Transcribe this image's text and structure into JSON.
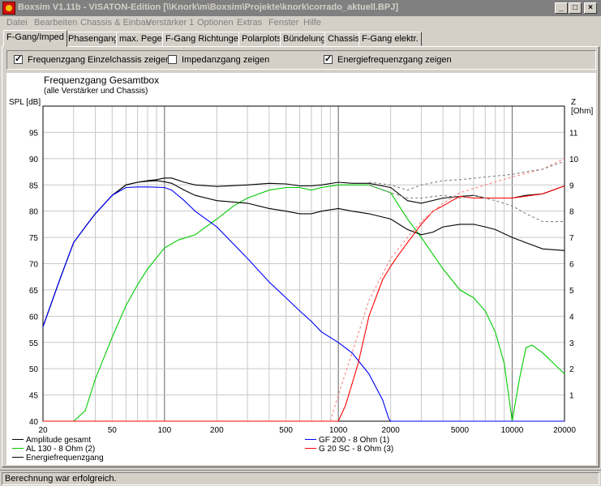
{
  "window": {
    "title": "Boxsim V1.11b - VISATON-Edition [\\\\Knork\\m\\Boxsim\\Projekte\\knork\\corrado_aktuell.BPJ]",
    "minimize": "_",
    "maximize": "□",
    "close": "×"
  },
  "menu": [
    "Datei",
    "Bearbeiten",
    "Chassis & Einbau",
    "Verstärker 1",
    "Optionen",
    "Extras",
    "Fenster",
    "Hilfe"
  ],
  "tabs": [
    "F-Gang/Imped",
    "Phasengang",
    "max. Pegel",
    "F-Gang Richtungen",
    "Polarplots",
    "Bündelung",
    "Chassis",
    "F-Gang elektr."
  ],
  "checkboxes": [
    {
      "label": "Frequenzgang Einzelchassis zeigen",
      "checked": true
    },
    {
      "label": "Impedanzgang zeigen",
      "checked": false
    },
    {
      "label": "Energiefrequenzgang zeigen",
      "checked": true
    }
  ],
  "status": "Berechnung war erfolgreich.",
  "chart_data": {
    "type": "line",
    "title": "Frequenzgang Gesamtbox",
    "subtitle": "(alle Verstärker und Chassis)",
    "ylabel": "SPL [dB]",
    "y2label": "Z [Ohm]",
    "xscale": "log",
    "xlim": [
      20,
      20000
    ],
    "ylim": [
      40,
      100
    ],
    "y2lim": [
      0,
      12
    ],
    "xticks": [
      20,
      50,
      100,
      200,
      500,
      1000,
      2000,
      5000,
      10000,
      20000
    ],
    "xtick_labels": [
      "20",
      "50",
      "100",
      "200",
      "500",
      "1000",
      "2000",
      "5000",
      "10000",
      "20000"
    ],
    "yticks": [
      40,
      45,
      50,
      55,
      60,
      65,
      70,
      75,
      80,
      85,
      90,
      95
    ],
    "y2ticks": [
      1,
      2,
      3,
      4,
      5,
      6,
      7,
      8,
      9,
      10,
      11
    ],
    "grid": true,
    "series": [
      {
        "name": "Amplitude gesamt",
        "color": "#000000",
        "style": "solid",
        "x": [
          20,
          25,
          30,
          35,
          40,
          50,
          60,
          70,
          80,
          90,
          100,
          110,
          130,
          150,
          200,
          300,
          400,
          500,
          600,
          700,
          800,
          1000,
          1200,
          1500,
          2000,
          2500,
          3000,
          4000,
          5000,
          6000,
          7000,
          8000,
          10000,
          12000,
          15000,
          20000
        ],
        "y": [
          58,
          67,
          74,
          77,
          79.5,
          83,
          85,
          85.5,
          85.8,
          86,
          86.3,
          86.3,
          85.5,
          85,
          84.7,
          85,
          85.3,
          85.2,
          84.8,
          84.8,
          85,
          85.5,
          85.3,
          85.3,
          84.5,
          82,
          81.5,
          82.5,
          82.8,
          83,
          82.5,
          82.5,
          82.5,
          83,
          83.3,
          84.8
        ]
      },
      {
        "name": "AL 130 - 8 Ohm (2)",
        "color": "#00cc00",
        "style": "solid",
        "x": [
          20,
          30,
          35,
          40,
          50,
          60,
          70,
          80,
          100,
          120,
          150,
          200,
          250,
          300,
          400,
          500,
          600,
          700,
          800,
          1000,
          1200,
          1500,
          2000,
          2500,
          3000,
          4000,
          5000,
          6000,
          7000,
          8000,
          9000,
          10000,
          11000,
          12000,
          13000,
          15000,
          20000
        ],
        "y": [
          40,
          40,
          42,
          48,
          56,
          62,
          66,
          69,
          73,
          74.5,
          75.5,
          78.5,
          81,
          82.5,
          84,
          84.5,
          84.5,
          84,
          84.5,
          85,
          85,
          85,
          83.5,
          78.5,
          75,
          69,
          65,
          63.5,
          61,
          57,
          51,
          40,
          48,
          54,
          54.5,
          53,
          49
        ]
      },
      {
        "name": "Energiefrequenzgang",
        "color": "#000000",
        "style": "solid",
        "x": [
          20,
          25,
          30,
          35,
          40,
          50,
          60,
          70,
          80,
          90,
          100,
          110,
          130,
          150,
          200,
          300,
          400,
          500,
          600,
          700,
          800,
          1000,
          1200,
          1500,
          2000,
          2500,
          3000,
          3500,
          4000,
          5000,
          6000,
          7000,
          8000,
          10000,
          12000,
          15000,
          20000
        ],
        "y": [
          58,
          67,
          74,
          77,
          79.5,
          83,
          85,
          85.5,
          85.7,
          85.8,
          85.6,
          85.3,
          84,
          83,
          82,
          81.5,
          80.5,
          80,
          79.5,
          79.5,
          80,
          80.5,
          80,
          79.5,
          78.5,
          76.5,
          75.5,
          76,
          77,
          77.5,
          77.5,
          77,
          76.5,
          75,
          74,
          72.8,
          72.5
        ]
      },
      {
        "name": "GF 200 - 8 Ohm (1)",
        "color": "#0000ff",
        "style": "solid",
        "x": [
          20,
          25,
          30,
          35,
          40,
          50,
          60,
          70,
          80,
          100,
          110,
          130,
          150,
          200,
          300,
          400,
          500,
          600,
          700,
          800,
          1000,
          1200,
          1500,
          1800,
          1950,
          2000,
          20000
        ],
        "y": [
          58,
          67,
          74,
          77,
          79.5,
          83,
          84.5,
          84.6,
          84.6,
          84.5,
          84,
          82,
          80,
          77,
          71,
          66.5,
          63.5,
          61,
          59,
          57,
          55,
          53,
          49,
          44,
          40.5,
          40,
          40
        ]
      },
      {
        "name": "G 20 SC - 8 Ohm (3)",
        "color": "#ff0000",
        "style": "solid",
        "x": [
          20,
          1000,
          1100,
          1300,
          1500,
          1800,
          2000,
          2200,
          2500,
          3000,
          3500,
          4000,
          4500,
          5000,
          6000,
          8000,
          10000,
          15000,
          20000
        ],
        "y": [
          40,
          40,
          43,
          51,
          60,
          67,
          69.5,
          71.5,
          74,
          77.5,
          80,
          81,
          82,
          82.8,
          82.5,
          82.5,
          82.5,
          83.3,
          84.8
        ]
      },
      {
        "name": "",
        "color": "#ff8080",
        "style": "dashed",
        "x": [
          900,
          1000,
          1200,
          1500,
          2000,
          2500,
          3000,
          4000,
          5000,
          7000,
          10000,
          15000,
          20000
        ],
        "y": [
          40,
          45,
          53,
          63,
          71,
          75,
          78,
          81.5,
          83.5,
          85,
          86.5,
          88,
          90
        ]
      },
      {
        "name": "",
        "color": "#808080",
        "style": "dashed",
        "x": [
          1500,
          2000,
          2500,
          3000,
          4000,
          5000,
          7000,
          10000,
          12000,
          15000,
          20000
        ],
        "y": [
          85.5,
          85,
          84,
          85,
          85.8,
          86,
          86.5,
          87,
          87.5,
          88,
          89.5
        ]
      },
      {
        "name": "",
        "color": "#808080",
        "style": "dashed",
        "x": [
          1500,
          2000,
          2500,
          3000,
          4000,
          5000,
          6000,
          8000,
          10000,
          12000,
          15000,
          20000
        ],
        "y": [
          85,
          83.5,
          82.5,
          82.5,
          83,
          82.5,
          83,
          82,
          81,
          79.5,
          78,
          78
        ]
      }
    ],
    "legend": [
      {
        "label": "Amplitude gesamt",
        "color": "#000000"
      },
      {
        "label": "AL 130 - 8 Ohm (2)",
        "color": "#00cc00"
      },
      {
        "label": "Energiefrequenzgang",
        "color": "#000000"
      },
      {
        "label": "GF 200 - 8 Ohm (1)",
        "color": "#0000ff"
      },
      {
        "label": "G 20 SC - 8 Ohm (3)",
        "color": "#ff0000"
      }
    ]
  }
}
